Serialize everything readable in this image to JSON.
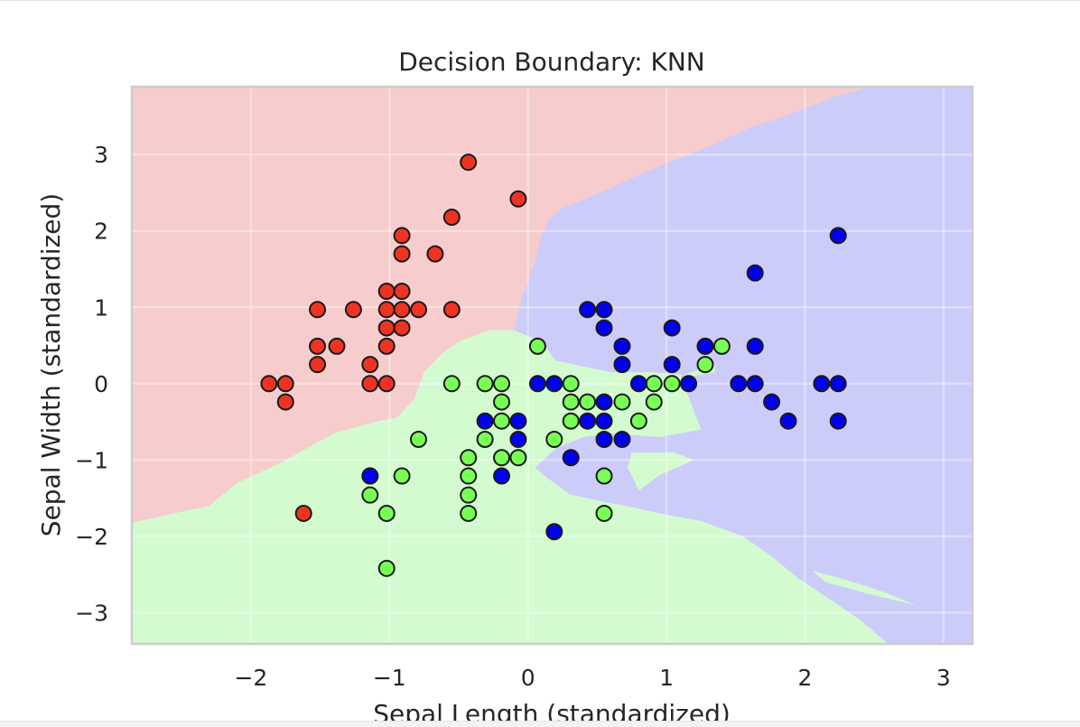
{
  "chart_data": {
    "type": "scatter",
    "title": "Decision Boundary: KNN",
    "xlabel": "Sepal Length (standardized)",
    "ylabel": "Sepal Width (standardized)",
    "xlim": [
      -2.86,
      3.21
    ],
    "ylim": [
      -3.41,
      3.89
    ],
    "x_ticks": [
      -2,
      -1,
      0,
      1,
      2,
      3
    ],
    "y_ticks": [
      -3,
      -2,
      -1,
      0,
      1,
      2,
      3
    ],
    "x_tick_labels": [
      "−2",
      "−1",
      "0",
      "1",
      "2",
      "3"
    ],
    "y_tick_labels": [
      "−3",
      "−2",
      "−1",
      "0",
      "1",
      "2",
      "3"
    ],
    "grid": true,
    "region_colors": {
      "class0": "#f6cccc",
      "class1": "#d4fbcf",
      "class2": "#ccccfb"
    },
    "regions": [
      {
        "class": "class2",
        "polygon": [
          [
            -2.86,
            -3.41
          ],
          [
            -2.86,
            3.89
          ],
          [
            3.21,
            3.89
          ],
          [
            3.21,
            -3.41
          ]
        ]
      },
      {
        "class": "class0",
        "polygon": [
          [
            -2.86,
            3.89
          ],
          [
            2.47,
            3.89
          ],
          [
            2.2,
            3.75
          ],
          [
            1.85,
            3.5
          ],
          [
            1.6,
            3.35
          ],
          [
            1.3,
            3.1
          ],
          [
            0.95,
            2.85
          ],
          [
            0.7,
            2.65
          ],
          [
            0.48,
            2.47
          ],
          [
            0.25,
            2.3
          ],
          [
            0.15,
            2.15
          ],
          [
            0.1,
            1.95
          ],
          [
            0.05,
            1.6
          ],
          [
            -0.05,
            1.1
          ],
          [
            -0.1,
            0.7
          ],
          [
            -0.28,
            0.7
          ],
          [
            -0.5,
            0.55
          ],
          [
            -0.62,
            0.4
          ],
          [
            -0.75,
            0.15
          ],
          [
            -0.82,
            -0.2
          ],
          [
            -0.95,
            -0.45
          ],
          [
            -1.1,
            -0.5
          ],
          [
            -1.4,
            -0.65
          ],
          [
            -1.55,
            -0.8
          ],
          [
            -1.7,
            -0.95
          ],
          [
            -1.8,
            -1.05
          ],
          [
            -2.1,
            -1.3
          ],
          [
            -2.3,
            -1.6
          ],
          [
            -2.86,
            -1.82
          ]
        ]
      },
      {
        "class": "class1",
        "polygon": [
          [
            -2.86,
            -1.82
          ],
          [
            -2.3,
            -1.6
          ],
          [
            -2.1,
            -1.3
          ],
          [
            -1.8,
            -1.05
          ],
          [
            -1.7,
            -0.95
          ],
          [
            -1.55,
            -0.8
          ],
          [
            -1.4,
            -0.65
          ],
          [
            -1.1,
            -0.5
          ],
          [
            -0.95,
            -0.45
          ],
          [
            -0.82,
            -0.2
          ],
          [
            -0.75,
            0.15
          ],
          [
            -0.62,
            0.4
          ],
          [
            -0.5,
            0.55
          ],
          [
            -0.28,
            0.7
          ],
          [
            -0.1,
            0.7
          ],
          [
            0.1,
            0.55
          ],
          [
            0.2,
            0.3
          ],
          [
            0.6,
            0.15
          ],
          [
            0.9,
            0.15
          ],
          [
            1.2,
            0.1
          ],
          [
            1.35,
            0.15
          ],
          [
            1.35,
            0.25
          ],
          [
            1.1,
            0.1
          ],
          [
            1.25,
            -0.6
          ],
          [
            0.95,
            -0.7
          ],
          [
            0.6,
            -0.65
          ],
          [
            0.4,
            -0.7
          ],
          [
            0.2,
            -0.85
          ],
          [
            0.05,
            -1.1
          ],
          [
            0.15,
            -1.25
          ],
          [
            0.3,
            -1.45
          ],
          [
            0.55,
            -1.55
          ],
          [
            0.7,
            -1.6
          ],
          [
            0.95,
            -1.7
          ],
          [
            1.25,
            -1.8
          ],
          [
            1.55,
            -2.0
          ],
          [
            1.75,
            -2.25
          ],
          [
            1.95,
            -2.55
          ],
          [
            2.2,
            -2.85
          ],
          [
            2.4,
            -3.1
          ],
          [
            2.6,
            -3.41
          ],
          [
            -2.86,
            -3.41
          ]
        ]
      },
      {
        "class": "class1",
        "polygon": [
          [
            0.75,
            -0.9
          ],
          [
            1.05,
            -0.9
          ],
          [
            1.2,
            -1.0
          ],
          [
            0.95,
            -1.2
          ],
          [
            0.8,
            -1.4
          ],
          [
            0.72,
            -1.1
          ]
        ]
      },
      {
        "class": "class1",
        "polygon": [
          [
            2.05,
            -2.45
          ],
          [
            2.35,
            -2.6
          ],
          [
            2.6,
            -2.75
          ],
          [
            2.8,
            -2.9
          ],
          [
            2.45,
            -2.75
          ],
          [
            2.15,
            -2.6
          ]
        ]
      }
    ],
    "series": [
      {
        "color": "#ee3322",
        "x": [
          -0.43,
          -0.07,
          -0.55,
          -0.91,
          -0.91,
          -0.67,
          -1.02,
          -0.91,
          -1.52,
          -1.26,
          -1.02,
          -1.02,
          -0.91,
          -0.79,
          -0.55,
          -1.52,
          -1.38,
          -1.02,
          -0.91,
          -1.52,
          -1.14,
          -1.87,
          -1.75,
          -1.14,
          -1.02,
          -1.75,
          -1.62
        ],
        "y": [
          2.9,
          2.42,
          2.18,
          1.94,
          1.7,
          1.7,
          1.21,
          1.21,
          0.97,
          0.97,
          0.97,
          0.73,
          0.73,
          0.97,
          0.97,
          0.49,
          0.49,
          0.49,
          0.97,
          0.25,
          0.25,
          0.0,
          0.0,
          0.0,
          0.0,
          -0.24,
          -1.7
        ]
      },
      {
        "color": "#77ff55",
        "x": [
          0.07,
          1.4,
          1.28,
          -0.55,
          -0.31,
          -0.19,
          0.31,
          0.91,
          1.04,
          -0.19,
          0.31,
          0.43,
          0.68,
          0.91,
          -0.19,
          0.31,
          0.8,
          -0.79,
          -0.31,
          0.19,
          -0.43,
          -0.19,
          -0.07,
          -1.14,
          -0.91,
          -0.43,
          0.55,
          -1.14,
          -0.43,
          -1.02,
          -0.43,
          0.55,
          -1.02
        ],
        "y": [
          0.49,
          0.49,
          0.25,
          0.0,
          0.0,
          0.0,
          0.0,
          0.0,
          0.0,
          -0.24,
          -0.24,
          -0.24,
          -0.24,
          -0.24,
          -0.49,
          -0.49,
          -0.49,
          -0.73,
          -0.73,
          -0.73,
          -0.97,
          -0.97,
          -0.97,
          -1.21,
          -1.21,
          -1.21,
          -1.21,
          -1.46,
          -1.46,
          -1.7,
          -1.7,
          -1.7,
          -2.42
        ]
      },
      {
        "color": "#0000ee",
        "x": [
          2.24,
          1.64,
          0.43,
          0.55,
          0.55,
          1.04,
          0.68,
          1.28,
          1.64,
          0.68,
          1.04,
          0.07,
          0.19,
          0.8,
          1.16,
          1.52,
          1.64,
          2.12,
          2.24,
          0.55,
          1.76,
          -0.31,
          -0.07,
          0.43,
          0.55,
          1.88,
          2.24,
          -0.07,
          0.55,
          0.68,
          0.31,
          -1.14,
          -0.19,
          0.19
        ],
        "y": [
          1.94,
          1.45,
          0.97,
          0.97,
          0.73,
          0.73,
          0.49,
          0.49,
          0.49,
          0.25,
          0.25,
          0.0,
          0.0,
          0.0,
          0.0,
          0.0,
          0.0,
          0.0,
          0.0,
          -0.24,
          -0.24,
          -0.49,
          -0.49,
          -0.49,
          -0.49,
          -0.49,
          -0.49,
          -0.73,
          -0.73,
          -0.73,
          -0.97,
          -1.21,
          -1.21,
          -1.94
        ]
      }
    ]
  }
}
